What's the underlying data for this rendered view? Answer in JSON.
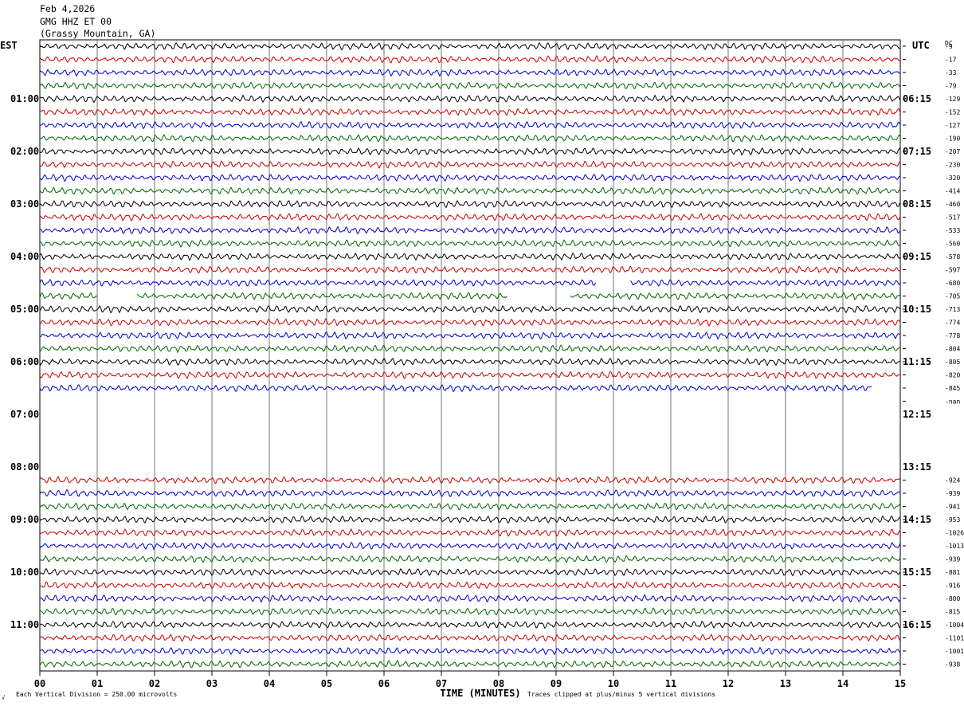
{
  "header": {
    "date": "Feb 4,2026",
    "station": "GMG HHZ ET 00",
    "location": "(Grassy Mountain, GA)"
  },
  "footer": {
    "scale_note": "Each Vertical Division =  250.00 microvolts",
    "clip_note": "Traces clipped at plus/minus 5 vertical divisions",
    "corner_mark": "√"
  },
  "chart_data": {
    "type": "line",
    "title": "",
    "left_axis_label": "EST",
    "right_axis_label": "UTC",
    "dc_label": "DC",
    "xlabel": "TIME (MINUTES)",
    "xlim": [
      0,
      15
    ],
    "x_ticks": [
      "00",
      "01",
      "02",
      "03",
      "04",
      "05",
      "06",
      "07",
      "08",
      "09",
      "10",
      "11",
      "12",
      "13",
      "14",
      "15"
    ],
    "grid_vertical": true,
    "trace_colors": [
      "#000000",
      "#cc0000",
      "#0000cc",
      "#006600"
    ],
    "hour_rows": [
      {
        "est": "",
        "utc": ""
      },
      {
        "est": "01:00",
        "utc": "06:15"
      },
      {
        "est": "02:00",
        "utc": "07:15"
      },
      {
        "est": "03:00",
        "utc": "08:15"
      },
      {
        "est": "04:00",
        "utc": "09:15"
      },
      {
        "est": "05:00",
        "utc": "10:15"
      },
      {
        "est": "06:00",
        "utc": "11:15"
      },
      {
        "est": "07:00",
        "utc": "12:15"
      },
      {
        "est": "08:00",
        "utc": "13:15"
      },
      {
        "est": "09:00",
        "utc": "14:15"
      },
      {
        "est": "10:00",
        "utc": "15:15"
      },
      {
        "est": "11:00",
        "utc": "16:15"
      }
    ],
    "dc_offsets": [
      "-9",
      "-17",
      "-33",
      "-79",
      "-129",
      "-152",
      "-127",
      "-190",
      "-207",
      "-230",
      "-320",
      "-414",
      "-460",
      "-517",
      "-533",
      "-560",
      "-578",
      "-597",
      "-680",
      "-705",
      "-713",
      "-774",
      "-778",
      "-804",
      "-805",
      "-820",
      "-845",
      "-nan",
      "",
      "",
      "",
      "",
      "",
      "-924",
      "-939",
      "-941",
      "-953",
      "-1026",
      "-1013",
      "-939",
      "-881",
      "-916",
      "-800",
      "-815",
      "-1004",
      "-1101",
      "-1001",
      "-938"
    ],
    "traces": [
      {
        "segments": [
          [
            0,
            15
          ]
        ]
      },
      {
        "segments": [
          [
            0,
            15
          ]
        ]
      },
      {
        "segments": [
          [
            0,
            15
          ]
        ]
      },
      {
        "segments": [
          [
            0,
            15
          ]
        ]
      },
      {
        "segments": [
          [
            0,
            15
          ]
        ]
      },
      {
        "segments": [
          [
            0,
            15
          ]
        ]
      },
      {
        "segments": [
          [
            0,
            15
          ]
        ]
      },
      {
        "segments": [
          [
            0,
            15
          ]
        ]
      },
      {
        "segments": [
          [
            0,
            15
          ]
        ]
      },
      {
        "segments": [
          [
            0,
            15
          ]
        ]
      },
      {
        "segments": [
          [
            0,
            15
          ]
        ]
      },
      {
        "segments": [
          [
            0,
            15
          ]
        ]
      },
      {
        "segments": [
          [
            0,
            15
          ]
        ]
      },
      {
        "segments": [
          [
            0,
            15
          ]
        ]
      },
      {
        "segments": [
          [
            0,
            15
          ]
        ]
      },
      {
        "segments": [
          [
            0,
            15
          ]
        ]
      },
      {
        "segments": [
          [
            0,
            15
          ]
        ]
      },
      {
        "segments": [
          [
            0,
            15
          ]
        ]
      },
      {
        "segments": [
          [
            0,
            9.7
          ],
          [
            10.3,
            15
          ]
        ]
      },
      {
        "segments": [
          [
            0,
            1.0
          ],
          [
            1.7,
            8.15
          ],
          [
            9.25,
            15
          ]
        ]
      },
      {
        "segments": [
          [
            0,
            15
          ]
        ]
      },
      {
        "segments": [
          [
            0,
            15
          ]
        ]
      },
      {
        "segments": [
          [
            0,
            15
          ]
        ]
      },
      {
        "segments": [
          [
            0,
            15
          ]
        ]
      },
      {
        "segments": [
          [
            0,
            15
          ]
        ]
      },
      {
        "segments": [
          [
            0,
            15
          ]
        ]
      },
      {
        "segments": [
          [
            0,
            14.5
          ]
        ]
      },
      {
        "segments": []
      },
      {
        "segments": []
      },
      {
        "segments": []
      },
      {
        "segments": []
      },
      {
        "segments": []
      },
      {
        "segments": []
      },
      {
        "segments": [
          [
            0,
            15
          ]
        ]
      },
      {
        "segments": [
          [
            0,
            15
          ]
        ]
      },
      {
        "segments": [
          [
            0,
            15
          ]
        ]
      },
      {
        "segments": [
          [
            0,
            15
          ]
        ]
      },
      {
        "segments": [
          [
            0,
            15
          ]
        ]
      },
      {
        "segments": [
          [
            0,
            15
          ]
        ]
      },
      {
        "segments": [
          [
            0,
            15
          ]
        ]
      },
      {
        "segments": [
          [
            0,
            15
          ]
        ]
      },
      {
        "segments": [
          [
            0,
            15
          ]
        ]
      },
      {
        "segments": [
          [
            0,
            15
          ]
        ]
      },
      {
        "segments": [
          [
            0,
            15
          ]
        ]
      },
      {
        "segments": [
          [
            0,
            15
          ]
        ]
      },
      {
        "segments": [
          [
            0,
            15
          ]
        ]
      },
      {
        "segments": [
          [
            0,
            15
          ]
        ]
      },
      {
        "segments": [
          [
            0,
            15
          ]
        ]
      }
    ]
  }
}
